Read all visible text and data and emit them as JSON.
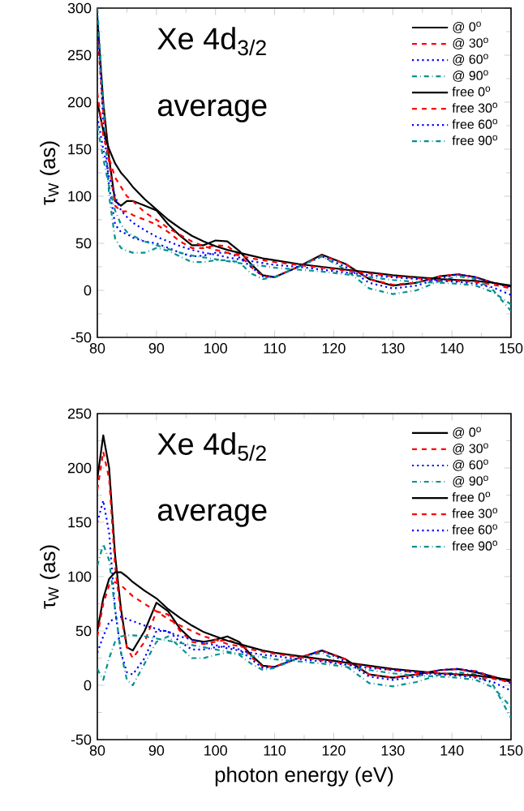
{
  "chart_data": [
    {
      "type": "line",
      "title": "Xe 4d$_{3/2}$",
      "subtitle": "average",
      "ylabel": "τ$_{W}$ (as)",
      "legend": "top right",
      "xlim": [
        80,
        150
      ],
      "ylim": [
        -50,
        300
      ],
      "xticks": [
        80,
        90,
        100,
        110,
        120,
        130,
        140,
        150
      ],
      "yticks": [
        -50,
        0,
        50,
        100,
        150,
        200,
        250,
        300
      ],
      "x": [
        80,
        81,
        82,
        83,
        84,
        85,
        86,
        88,
        90,
        92,
        94,
        96,
        98,
        100,
        102,
        104,
        106,
        108,
        110,
        114,
        118,
        122,
        126,
        130,
        134,
        138,
        141,
        144,
        147,
        150
      ],
      "series": [
        {
          "name": "@ 0$^{o}$",
          "color": "#000000",
          "line_style": "solid",
          "values": [
            290,
            200,
            140,
            95,
            90,
            95,
            95,
            90,
            85,
            70,
            58,
            48,
            48,
            53,
            52,
            42,
            28,
            16,
            14,
            25,
            38,
            28,
            12,
            5,
            8,
            15,
            17,
            14,
            8,
            4
          ]
        },
        {
          "name": "@ 30$^{o}$",
          "color": "#ff0000",
          "line_style": "dashed",
          "values": [
            275,
            190,
            135,
            90,
            84,
            84,
            80,
            75,
            70,
            62,
            52,
            45,
            45,
            48,
            47,
            38,
            25,
            15,
            14,
            25,
            37,
            28,
            12,
            6,
            8,
            15,
            17,
            14,
            8,
            4
          ]
        },
        {
          "name": "@ 60$^{o}$",
          "color": "#0000ff",
          "line_style": "dotted",
          "values": [
            290,
            180,
            110,
            70,
            62,
            60,
            56,
            52,
            50,
            45,
            40,
            36,
            37,
            40,
            40,
            35,
            25,
            15,
            14,
            25,
            36,
            25,
            8,
            2,
            5,
            13,
            17,
            14,
            8,
            3
          ]
        },
        {
          "name": "@ 90$^{o}$",
          "color": "#009090",
          "line_style": "dashdot",
          "values": [
            300,
            200,
            100,
            55,
            45,
            42,
            40,
            40,
            45,
            42,
            36,
            30,
            30,
            32,
            32,
            30,
            18,
            12,
            14,
            25,
            36,
            22,
            2,
            -4,
            0,
            10,
            15,
            12,
            0,
            -22
          ]
        },
        {
          "name": "free 0$^{o}$",
          "color": "#000000",
          "line_style": "solid",
          "values": [
            200,
            170,
            150,
            135,
            125,
            118,
            110,
            97,
            86,
            75,
            66,
            58,
            52,
            47,
            43,
            40,
            37,
            34,
            32,
            28,
            25,
            22,
            19,
            16,
            14,
            12,
            11,
            10,
            8,
            5
          ]
        },
        {
          "name": "free 30$^{o}$",
          "color": "#ff0000",
          "line_style": "dashed",
          "values": [
            210,
            165,
            140,
            120,
            110,
            100,
            95,
            83,
            75,
            66,
            59,
            52,
            47,
            43,
            40,
            37,
            34,
            32,
            30,
            27,
            24,
            21,
            18,
            15,
            13,
            11,
            10,
            9,
            6,
            2
          ]
        },
        {
          "name": "free 60$^{o}$",
          "color": "#0000ff",
          "line_style": "dotted",
          "values": [
            185,
            150,
            120,
            100,
            85,
            78,
            72,
            64,
            57,
            52,
            47,
            43,
            40,
            38,
            35,
            33,
            31,
            29,
            27,
            25,
            22,
            19,
            16,
            14,
            12,
            10,
            9,
            7,
            3,
            -5
          ]
        },
        {
          "name": "free 90$^{o}$",
          "color": "#009090",
          "line_style": "dashdot",
          "values": [
            175,
            140,
            110,
            85,
            70,
            62,
            58,
            52,
            48,
            44,
            40,
            37,
            35,
            33,
            31,
            29,
            27,
            26,
            24,
            22,
            20,
            17,
            14,
            11,
            9,
            8,
            7,
            5,
            -2,
            -15
          ]
        }
      ]
    },
    {
      "type": "line",
      "title": "Xe 4d$_{5/2}$",
      "subtitle": "average",
      "xlabel": "photon energy (eV)",
      "ylabel": "τ$_{W}$ (as)",
      "legend": "top right",
      "xlim": [
        80,
        150
      ],
      "ylim": [
        -50,
        250
      ],
      "xticks": [
        80,
        90,
        100,
        110,
        120,
        130,
        140,
        150
      ],
      "yticks": [
        -50,
        0,
        50,
        100,
        150,
        200,
        250
      ],
      "x": [
        80,
        81,
        82,
        83,
        84,
        85,
        86,
        88,
        90,
        92,
        94,
        96,
        98,
        100,
        102,
        104,
        106,
        108,
        110,
        114,
        118,
        122,
        126,
        130,
        134,
        138,
        141,
        144,
        147,
        150
      ],
      "series": [
        {
          "name": "@ 0$^{o}$",
          "color": "#000000",
          "line_style": "solid",
          "values": [
            190,
            230,
            200,
            120,
            70,
            35,
            32,
            50,
            76,
            68,
            52,
            42,
            40,
            42,
            45,
            40,
            28,
            18,
            17,
            25,
            32,
            24,
            10,
            7,
            10,
            14,
            15,
            12,
            8,
            3
          ]
        },
        {
          "name": "@ 30$^{o}$",
          "color": "#ff0000",
          "line_style": "dashed",
          "values": [
            180,
            215,
            190,
            110,
            65,
            35,
            25,
            40,
            68,
            65,
            50,
            40,
            38,
            40,
            42,
            38,
            26,
            17,
            17,
            25,
            32,
            24,
            10,
            7,
            10,
            14,
            15,
            13,
            8,
            3
          ]
        },
        {
          "name": "@ 60$^{o}$",
          "color": "#0000ff",
          "line_style": "dotted",
          "values": [
            150,
            170,
            140,
            70,
            30,
            12,
            10,
            25,
            50,
            50,
            40,
            33,
            33,
            35,
            36,
            33,
            24,
            16,
            17,
            25,
            32,
            22,
            8,
            5,
            8,
            14,
            15,
            13,
            7,
            2
          ]
        },
        {
          "name": "@ 90$^{o}$",
          "color": "#009090",
          "line_style": "dashdot",
          "values": [
            110,
            130,
            115,
            70,
            30,
            5,
            0,
            20,
            40,
            45,
            35,
            25,
            25,
            28,
            30,
            28,
            20,
            14,
            16,
            25,
            30,
            18,
            2,
            -1,
            3,
            10,
            12,
            10,
            0,
            -30
          ]
        },
        {
          "name": "free 0$^{o}$",
          "color": "#000000",
          "line_style": "solid",
          "values": [
            50,
            80,
            98,
            104,
            104,
            100,
            95,
            87,
            80,
            70,
            62,
            55,
            49,
            45,
            41,
            38,
            35,
            32,
            30,
            27,
            24,
            21,
            18,
            15,
            13,
            11,
            10,
            9,
            7,
            5
          ]
        },
        {
          "name": "free 30$^{o}$",
          "color": "#ff0000",
          "line_style": "dashed",
          "values": [
            45,
            75,
            92,
            95,
            92,
            87,
            82,
            75,
            68,
            61,
            55,
            50,
            45,
            42,
            38,
            36,
            33,
            31,
            29,
            26,
            23,
            20,
            17,
            14,
            12,
            11,
            10,
            8,
            6,
            3
          ]
        },
        {
          "name": "free 60$^{o}$",
          "color": "#0000ff",
          "line_style": "dotted",
          "values": [
            30,
            45,
            58,
            62,
            63,
            61,
            59,
            55,
            52,
            49,
            45,
            42,
            39,
            37,
            34,
            32,
            30,
            28,
            27,
            24,
            22,
            19,
            16,
            14,
            12,
            10,
            9,
            7,
            3,
            -5
          ]
        },
        {
          "name": "free 90$^{o}$",
          "color": "#009090",
          "line_style": "dashdot",
          "values": [
            15,
            5,
            25,
            40,
            45,
            46,
            46,
            45,
            43,
            41,
            39,
            37,
            35,
            33,
            31,
            29,
            27,
            26,
            24,
            22,
            20,
            17,
            14,
            11,
            9,
            8,
            7,
            5,
            -2,
            -20
          ]
        }
      ]
    }
  ]
}
